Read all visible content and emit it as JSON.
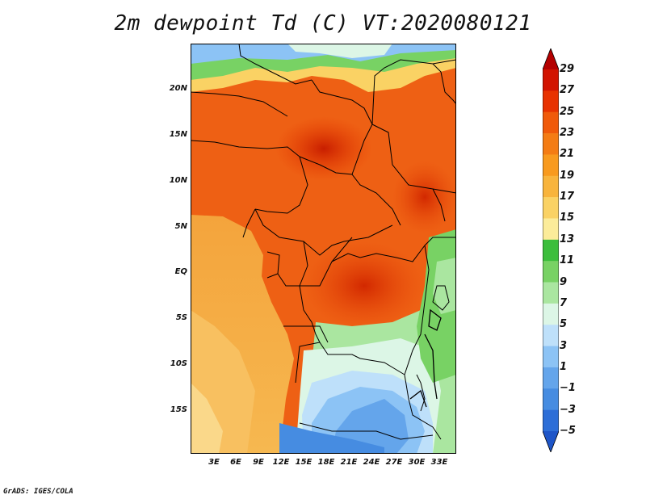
{
  "title": "2m dewpoint Td (C) VT:2020080121",
  "footer": "GrADS: IGES/COLA",
  "map": {
    "y_ticks": [
      "20N",
      "15N",
      "10N",
      "5N",
      "EQ",
      "5S",
      "10S",
      "15S"
    ],
    "x_ticks": [
      "3E",
      "6E",
      "9E",
      "12E",
      "15E",
      "18E",
      "21E",
      "24E",
      "27E",
      "30E",
      "33E"
    ]
  },
  "colorbar": {
    "labels": [
      "29",
      "27",
      "25",
      "23",
      "21",
      "19",
      "17",
      "15",
      "13",
      "11",
      "9",
      "7",
      "5",
      "3",
      "1",
      "−1",
      "−3",
      "−5"
    ],
    "colors": [
      "#b40000",
      "#d21400",
      "#e83200",
      "#f05a0a",
      "#f47c14",
      "#f89a1e",
      "#f8b43c",
      "#fad264",
      "#fcec9a",
      "#3cbe3c",
      "#78d264",
      "#aae6a0",
      "#dcf6e6",
      "#bee0fa",
      "#8cc3f5",
      "#64a5eb",
      "#468ce1",
      "#2d6ed7",
      "#1e55c8"
    ]
  }
}
